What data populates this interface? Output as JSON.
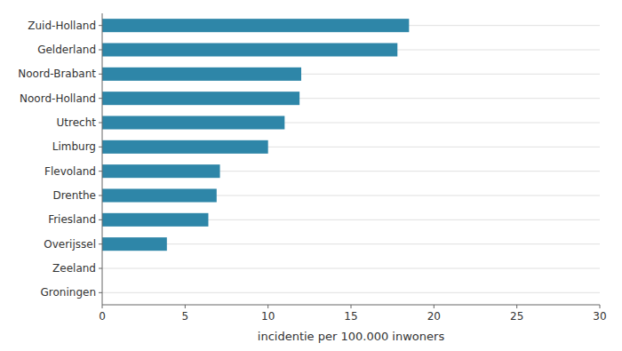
{
  "chart_data": {
    "type": "bar",
    "orientation": "horizontal",
    "categories": [
      "Zuid-Holland",
      "Gelderland",
      "Noord-Brabant",
      "Noord-Holland",
      "Utrecht",
      "Limburg",
      "Flevoland",
      "Drenthe",
      "Friesland",
      "Overijssel",
      "Zeeland",
      "Groningen"
    ],
    "values": [
      18.5,
      17.8,
      12.0,
      11.9,
      11.0,
      10.0,
      7.1,
      6.9,
      6.4,
      3.9,
      0.0,
      0.0
    ],
    "color": "#2e86a8",
    "xlabel": "incidentie per 100.000 inwoners",
    "xlim": [
      0,
      30
    ],
    "xticks": [
      0,
      5,
      10,
      15,
      20,
      25,
      30
    ],
    "grid": true
  }
}
